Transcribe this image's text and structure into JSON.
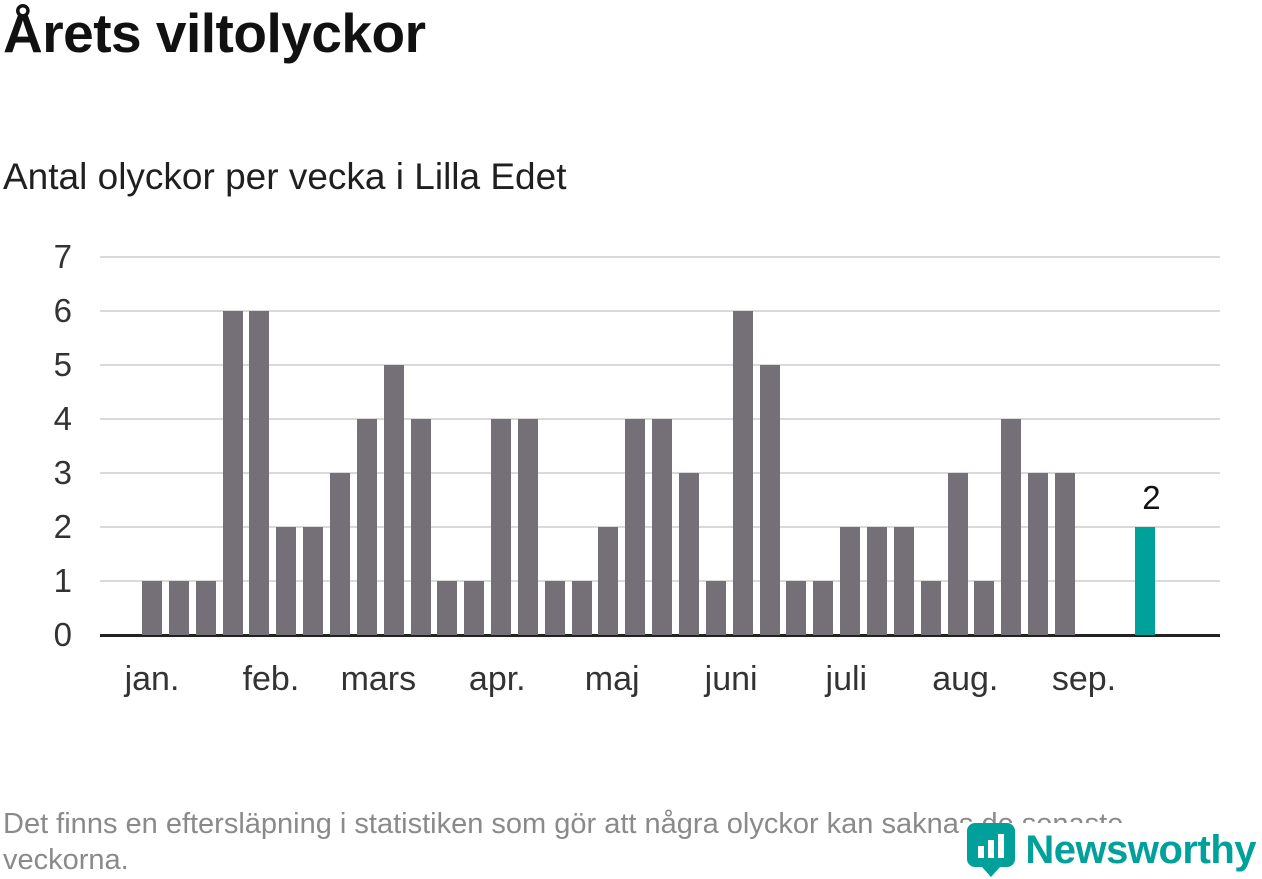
{
  "title": "Årets viltolyckor",
  "subtitle": "Antal olyckor per vecka i Lilla Edet",
  "footer": "Det finns en eftersläpning i statistiken som gör att några olyckor kan saknas de senaste veckorna.",
  "branding": {
    "name": "Newsworthy",
    "icon": "newsworthy-logo-icon"
  },
  "colors": {
    "bar": "#757078",
    "highlight": "#00a19a",
    "grid": "#dadada",
    "axis": "#222222",
    "muted": "#8a8a8a"
  },
  "chart_data": {
    "type": "bar",
    "title": "Årets viltolyckor",
    "subtitle": "Antal olyckor per vecka i Lilla Edet",
    "xlabel": "",
    "ylabel": "",
    "x_unit": "vecka",
    "ylim": [
      0,
      7
    ],
    "grid": true,
    "y_ticks": [
      0,
      1,
      2,
      3,
      4,
      5,
      6,
      7
    ],
    "values": [
      1,
      1,
      1,
      6,
      6,
      2,
      2,
      3,
      4,
      5,
      4,
      1,
      1,
      4,
      4,
      1,
      1,
      2,
      4,
      4,
      3,
      1,
      6,
      5,
      1,
      1,
      2,
      2,
      2,
      1,
      3,
      1,
      4,
      3,
      3,
      0,
      0,
      2
    ],
    "highlight_last": true,
    "highlight_value_label": "2",
    "month_ticks": [
      {
        "label": "jan.",
        "week": 1.0
      },
      {
        "label": "feb.",
        "week": 5.43
      },
      {
        "label": "mars",
        "week": 9.43
      },
      {
        "label": "apr.",
        "week": 13.86
      },
      {
        "label": "maj",
        "week": 18.14
      },
      {
        "label": "juni",
        "week": 22.57
      },
      {
        "label": "juli",
        "week": 26.86
      },
      {
        "label": "aug.",
        "week": 31.29
      },
      {
        "label": "sep.",
        "week": 35.71
      }
    ]
  }
}
